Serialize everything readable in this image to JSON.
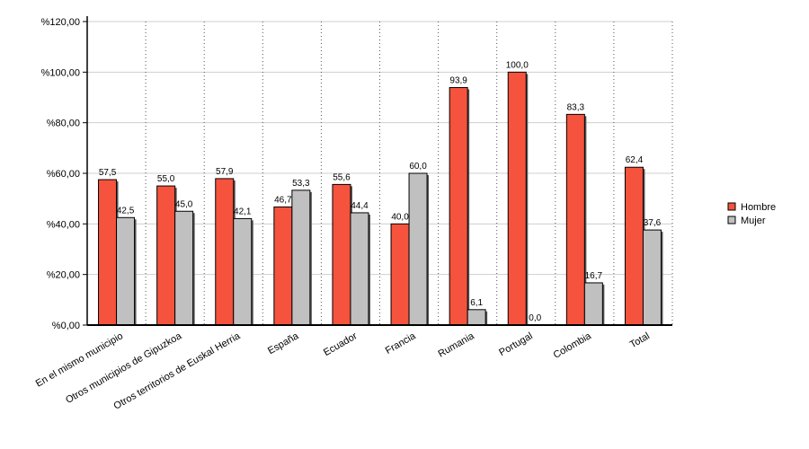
{
  "chart_data": {
    "type": "bar",
    "categories": [
      "En el mismo municipio",
      "Otros municipios de Gipuzkoa",
      "Otros territorios de Euskal Herria",
      "España",
      "Ecuador",
      "Francia",
      "Rumania",
      "Portugal",
      "Colombia",
      "Total"
    ],
    "series": [
      {
        "name": "Hombre",
        "color": "#f5533d",
        "values": [
          57.5,
          55.0,
          57.9,
          46.7,
          55.6,
          40.0,
          93.9,
          100.0,
          83.3,
          62.4
        ],
        "labels": [
          "57,5",
          "55,0",
          "57,9",
          "46,7",
          "55,6",
          "40,0",
          "93,9",
          "100,0",
          "83,3",
          "62,4"
        ]
      },
      {
        "name": "Mujer",
        "color": "#c0c0c0",
        "values": [
          42.5,
          45.0,
          42.1,
          53.3,
          44.4,
          60.0,
          6.1,
          0.0,
          16.7,
          37.6
        ],
        "labels": [
          "42,5",
          "45,0",
          "42,1",
          "53,3",
          "44,4",
          "60,0",
          "6,1",
          "0,0",
          "16,7",
          "37,6"
        ]
      }
    ],
    "yticks": [
      0,
      20,
      40,
      60,
      80,
      100,
      120
    ],
    "ytick_labels": [
      "%0,00",
      "%20,00",
      "%40,00",
      "%60,00",
      "%80,00",
      "%100,00",
      "%120,00"
    ],
    "ylim": [
      0,
      120
    ],
    "title": "",
    "xlabel": "",
    "ylabel": "",
    "grid": "horizontal solid lines and dotted vertical category separators",
    "legend_position": "right"
  }
}
